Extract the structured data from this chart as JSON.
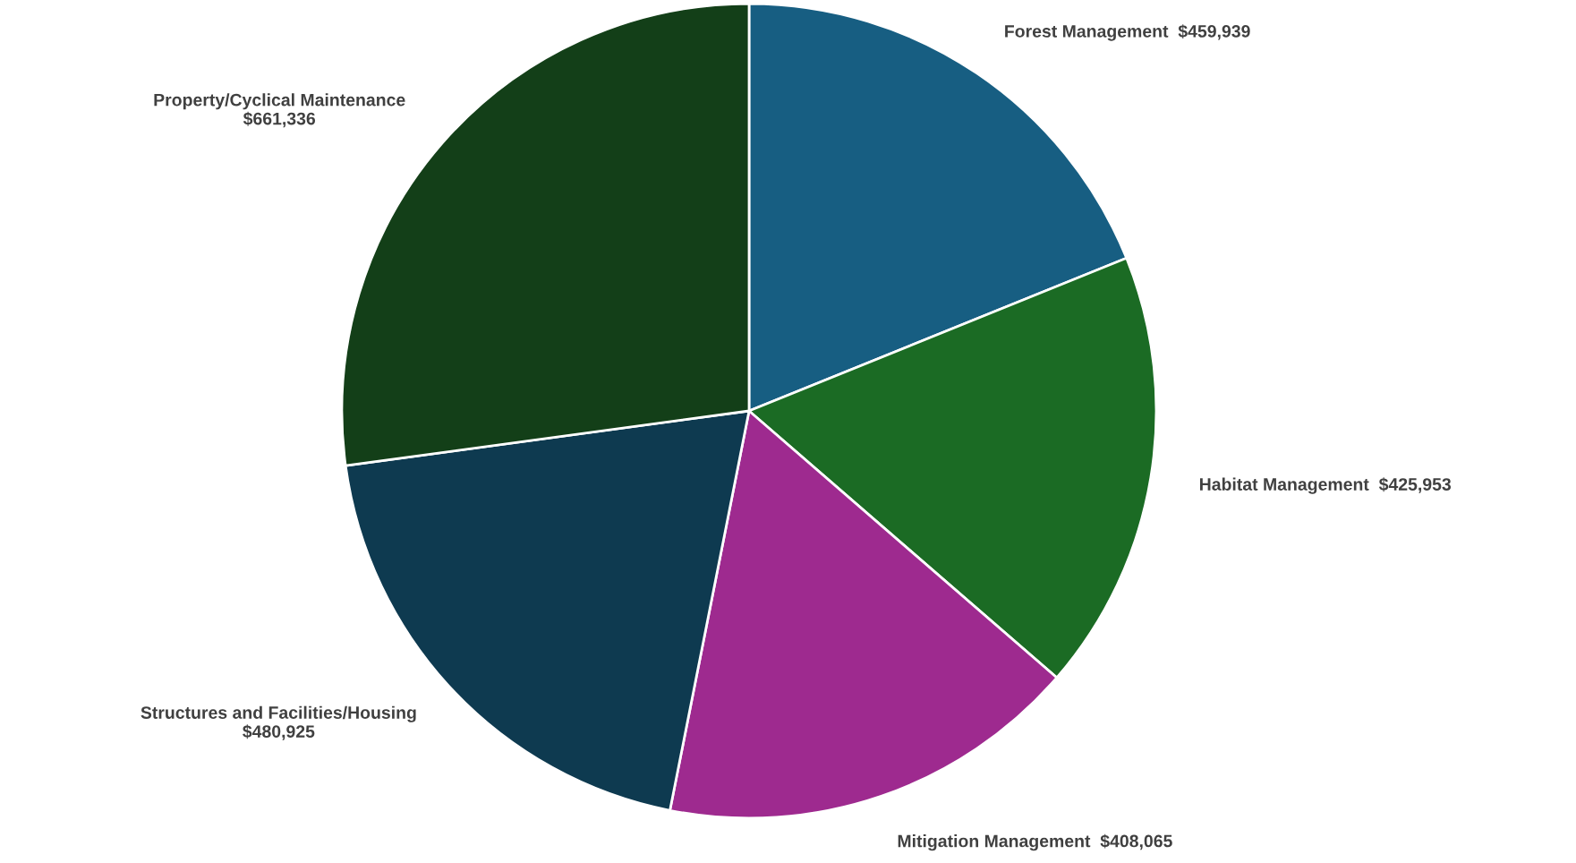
{
  "chart_data": {
    "type": "pie",
    "categories": [
      "Forest Management",
      "Habitat Management",
      "Mitigation Management",
      "Structures and Facilities/Housing",
      "Property/Cyclical Maintenance"
    ],
    "values": [
      459939,
      425953,
      408065,
      480925,
      661336
    ],
    "value_labels": [
      "$459,939",
      "$425,953",
      "$408,065",
      "$480,925",
      "$661,336"
    ],
    "colors": [
      "#175e82",
      "#1b6b24",
      "#9e2a8f",
      "#0e3a50",
      "#133f18"
    ],
    "legend": false
  }
}
